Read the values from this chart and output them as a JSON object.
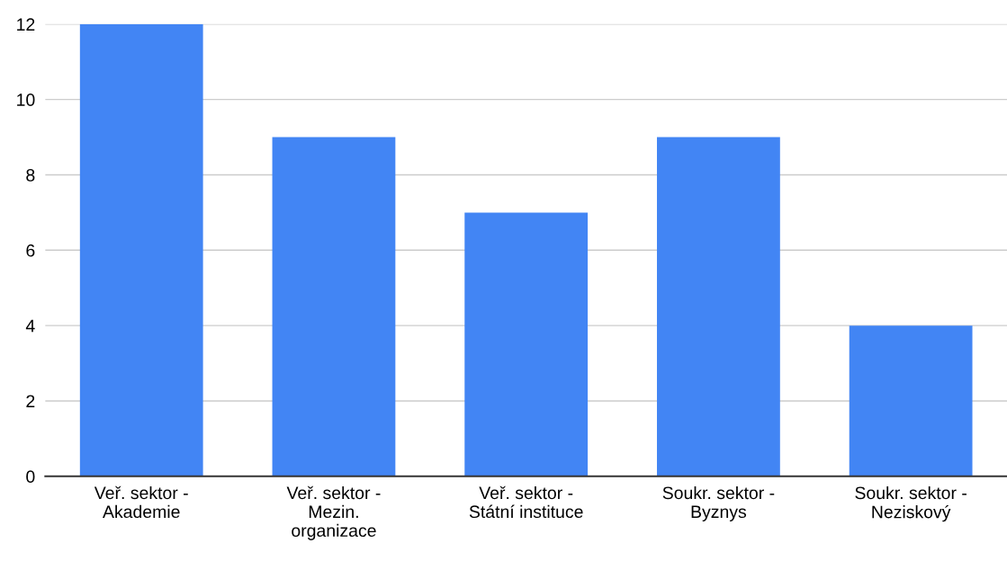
{
  "chart_data": {
    "type": "bar",
    "categories": [
      "Veř. sektor -\nAkademie",
      "Veř. sektor -\nMezin.\norganizace",
      "Veř. sektor -\nStátní instituce",
      "Soukr. sektor -\nByznys",
      "Soukr. sektor -\nNeziskový"
    ],
    "values": [
      12,
      9,
      7,
      9,
      4
    ],
    "color": "#4285f4",
    "ylim": [
      0,
      12
    ],
    "yticks": [
      0,
      2,
      4,
      6,
      8,
      10,
      12
    ],
    "grid": "y"
  }
}
